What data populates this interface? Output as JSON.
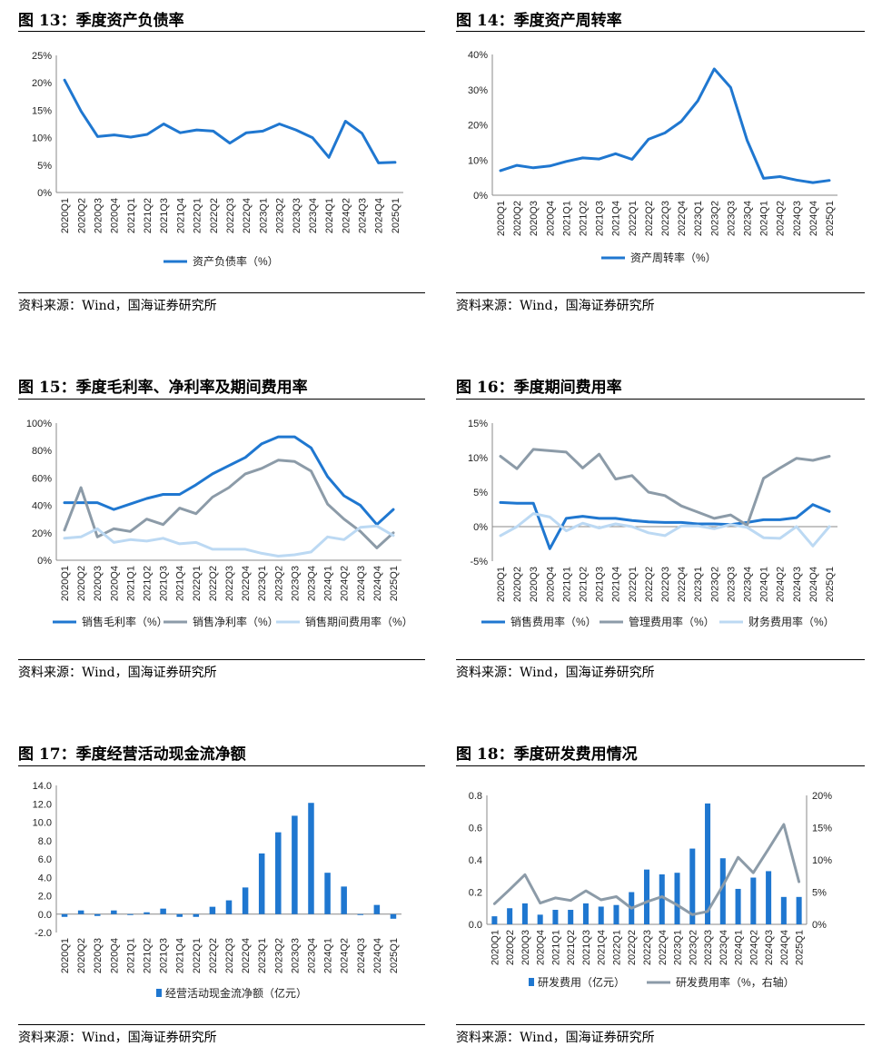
{
  "source_label": "资料来源：Wind，国海证券研究所",
  "colors": {
    "dark_blue": "#1f77d0",
    "gray": "#8c9ba8",
    "light_blue": "#bcd9f3"
  },
  "panels": [
    {
      "title": "图 13：季度资产负债率"
    },
    {
      "title": "图 14：季度资产周转率"
    },
    {
      "title": "图 15：季度毛利率、净利率及期间费用率"
    },
    {
      "title": "图 16：季度期间费用率"
    },
    {
      "title": "图 17：季度经营活动现金流净额"
    },
    {
      "title": "图 18：季度研发费用情况"
    }
  ],
  "chart_data": [
    {
      "type": "line",
      "categories": [
        "2020Q1",
        "2020Q2",
        "2020Q3",
        "2020Q4",
        "2021Q1",
        "2021Q2",
        "2021Q3",
        "2021Q4",
        "2022Q1",
        "2022Q2",
        "2022Q3",
        "2022Q4",
        "2023Q1",
        "2023Q2",
        "2023Q3",
        "2023Q4",
        "2024Q1",
        "2024Q2",
        "2024Q3",
        "2024Q4",
        "2025Q1"
      ],
      "ylim": [
        0,
        25
      ],
      "yticks": [
        "0%",
        "5%",
        "10%",
        "15%",
        "20%",
        "25%"
      ],
      "legend_position": "bottom",
      "series": [
        {
          "name": "资产负债率（%）",
          "color": "#1f77d0",
          "values": [
            20.5,
            14.8,
            10.2,
            10.5,
            10.1,
            10.6,
            12.5,
            10.9,
            11.4,
            11.2,
            9.0,
            10.9,
            11.2,
            12.5,
            11.4,
            10.0,
            6.4,
            13.0,
            10.8,
            5.4,
            5.5
          ]
        }
      ]
    },
    {
      "type": "line",
      "categories": [
        "2020Q1",
        "2020Q2",
        "2020Q3",
        "2020Q4",
        "2021Q1",
        "2021Q2",
        "2021Q3",
        "2021Q4",
        "2022Q1",
        "2022Q2",
        "2022Q3",
        "2022Q4",
        "2023Q1",
        "2023Q2",
        "2023Q3",
        "2023Q4",
        "2024Q1",
        "2024Q2",
        "2024Q3",
        "2024Q4",
        "2025Q1"
      ],
      "ylim": [
        0,
        40
      ],
      "yticks": [
        "0%",
        "10%",
        "20%",
        "30%",
        "40%"
      ],
      "legend_position": "bottom",
      "series": [
        {
          "name": "资产周转率（%）",
          "color": "#1f77d0",
          "values": [
            7.0,
            8.5,
            7.8,
            8.3,
            9.6,
            10.6,
            10.3,
            11.8,
            10.2,
            15.9,
            17.7,
            21.0,
            26.8,
            35.9,
            30.6,
            15.6,
            4.8,
            5.3,
            4.3,
            3.6,
            4.2
          ]
        }
      ]
    },
    {
      "type": "line",
      "categories": [
        "2020Q1",
        "2020Q2",
        "2020Q3",
        "2020Q4",
        "2021Q1",
        "2021Q2",
        "2021Q3",
        "2021Q4",
        "2022Q1",
        "2022Q2",
        "2022Q3",
        "2022Q4",
        "2023Q1",
        "2023Q2",
        "2023Q3",
        "2023Q4",
        "2024Q1",
        "2024Q2",
        "2024Q3",
        "2024Q4",
        "2025Q1"
      ],
      "ylim": [
        0,
        100
      ],
      "yticks": [
        "0%",
        "20%",
        "40%",
        "60%",
        "80%",
        "100%"
      ],
      "legend_position": "bottom",
      "series": [
        {
          "name": "销售毛利率（%）",
          "color": "#1f77d0",
          "values": [
            42,
            42,
            42,
            37,
            41,
            45,
            48,
            48,
            55,
            63,
            69,
            75,
            85,
            90,
            90,
            82,
            61,
            47,
            40,
            26,
            37
          ]
        },
        {
          "name": "销售净利率（%）",
          "color": "#8c9ba8",
          "values": [
            22,
            53,
            17,
            23,
            21,
            30,
            26,
            38,
            34,
            46,
            53,
            63,
            67,
            73,
            72,
            65,
            41,
            30,
            21,
            9,
            20
          ]
        },
        {
          "name": "销售期间费用率（%）",
          "color": "#bcd9f3",
          "values": [
            16,
            17,
            23,
            13,
            15,
            14,
            16,
            12,
            13,
            8,
            8,
            8,
            5,
            3,
            4,
            6,
            17,
            15,
            24,
            25,
            18
          ]
        }
      ]
    },
    {
      "type": "line",
      "categories": [
        "2020Q1",
        "2020Q2",
        "2020Q3",
        "2020Q4",
        "2021Q1",
        "2021Q2",
        "2021Q3",
        "2021Q4",
        "2022Q1",
        "2022Q2",
        "2022Q3",
        "2022Q4",
        "2023Q1",
        "2023Q2",
        "2023Q3",
        "2023Q4",
        "2024Q1",
        "2024Q2",
        "2024Q3",
        "2024Q4",
        "2025Q1"
      ],
      "ylim": [
        -5,
        15
      ],
      "yticks": [
        "-5%",
        "0%",
        "5%",
        "10%",
        "15%"
      ],
      "legend_position": "bottom",
      "series": [
        {
          "name": "销售费用率（%）",
          "color": "#1f77d0",
          "values": [
            3.5,
            3.4,
            3.4,
            -3.2,
            1.2,
            1.5,
            1.2,
            1.2,
            0.9,
            0.7,
            0.6,
            0.6,
            0.4,
            0.4,
            0.3,
            0.6,
            1.0,
            1.0,
            1.3,
            3.2,
            2.2
          ]
        },
        {
          "name": "管理费用率（%）",
          "color": "#8c9ba8",
          "values": [
            10.2,
            8.4,
            11.2,
            11.0,
            10.8,
            8.5,
            10.5,
            6.9,
            7.4,
            5.0,
            4.5,
            3.0,
            2.1,
            1.2,
            1.7,
            0.2,
            7.0,
            8.5,
            9.9,
            9.6,
            10.2
          ]
        },
        {
          "name": "财务费用率（%）",
          "color": "#bcd9f3",
          "values": [
            -1.3,
            0.0,
            1.9,
            1.4,
            -0.6,
            0.5,
            -0.2,
            0.4,
            0.0,
            -0.9,
            -1.3,
            0.1,
            0.1,
            -0.3,
            0.3,
            -0.1,
            -1.6,
            -1.7,
            0.0,
            -2.8,
            0.0
          ]
        }
      ]
    },
    {
      "type": "bar",
      "categories": [
        "2020Q1",
        "2020Q2",
        "2020Q3",
        "2020Q4",
        "2021Q1",
        "2021Q2",
        "2021Q3",
        "2021Q4",
        "2022Q1",
        "2022Q2",
        "2022Q3",
        "2022Q4",
        "2023Q1",
        "2023Q2",
        "2023Q3",
        "2023Q4",
        "2024Q1",
        "2024Q2",
        "2024Q3",
        "2024Q4",
        "2025Q1"
      ],
      "ylim": [
        -2,
        14
      ],
      "yticks": [
        "-2.0",
        "0.0",
        "2.0",
        "4.0",
        "6.0",
        "8.0",
        "10.0",
        "12.0",
        "14.0"
      ],
      "legend_position": "bottom",
      "series": [
        {
          "name": "经营活动现金流净额（亿元）",
          "color": "#1f77d0",
          "values": [
            -0.3,
            0.4,
            -0.2,
            0.4,
            -0.1,
            0.2,
            0.6,
            -0.3,
            -0.3,
            0.8,
            1.5,
            2.9,
            6.6,
            8.9,
            10.7,
            12.1,
            4.5,
            3.0,
            -0.1,
            1.0,
            -0.5
          ]
        }
      ]
    },
    {
      "type": "bar",
      "categories": [
        "2020Q1",
        "2020Q2",
        "2020Q3",
        "2020Q4",
        "2021Q1",
        "2021Q2",
        "2021Q3",
        "2021Q4",
        "2022Q1",
        "2022Q2",
        "2022Q3",
        "2022Q4",
        "2023Q1",
        "2023Q2",
        "2023Q3",
        "2023Q4",
        "2024Q1",
        "2024Q2",
        "2024Q3",
        "2024Q4",
        "2025Q1"
      ],
      "ylim": [
        0,
        0.8
      ],
      "yticks": [
        "0.0",
        "0.2",
        "0.4",
        "0.6",
        "0.8"
      ],
      "y2lim": [
        0,
        20
      ],
      "y2ticks": [
        "0%",
        "5%",
        "10%",
        "15%",
        "20%"
      ],
      "legend_position": "bottom",
      "series": [
        {
          "name": "研发费用（亿元）",
          "kind": "bar",
          "color": "#1f77d0",
          "values": [
            0.05,
            0.1,
            0.13,
            0.06,
            0.09,
            0.09,
            0.13,
            0.11,
            0.12,
            0.2,
            0.34,
            0.31,
            0.32,
            0.47,
            0.75,
            0.41,
            0.22,
            0.29,
            0.33,
            0.17,
            0.17
          ]
        },
        {
          "name": "研发费用率（%，右轴）",
          "kind": "line",
          "axis": "right",
          "color": "#8c9ba8",
          "values": [
            3.2,
            5.4,
            7.7,
            3.3,
            4.1,
            3.7,
            5.2,
            3.8,
            4.3,
            2.5,
            3.5,
            4.3,
            3.0,
            1.5,
            2.0,
            6.0,
            10.4,
            8.0,
            11.7,
            15.5,
            6.6
          ]
        }
      ]
    }
  ]
}
